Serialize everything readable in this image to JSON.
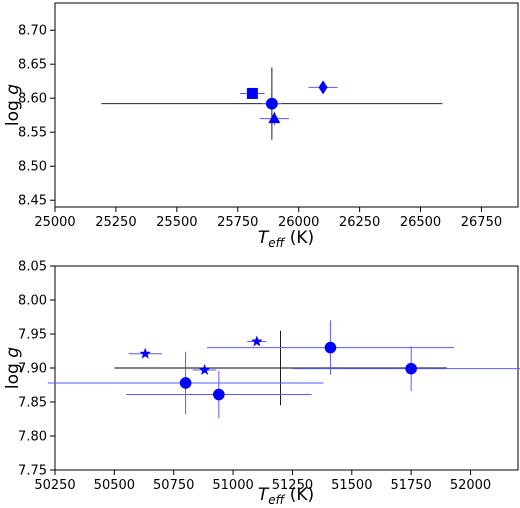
{
  "chart_data": [
    {
      "type": "scatter",
      "xlabel_main": "T",
      "xlabel_sub": "eff",
      "xlabel_unit": " (K)",
      "ylabel_main": "log ",
      "ylabel_var": "g",
      "xlim": [
        25000,
        26900
      ],
      "ylim": [
        8.44,
        8.74
      ],
      "xticks": [
        25000,
        25250,
        25500,
        25750,
        26000,
        26250,
        26500,
        26750
      ],
      "yticks": [
        8.45,
        8.5,
        8.55,
        8.6,
        8.65,
        8.7
      ],
      "ytick_labels": [
        "8.45",
        "8.50",
        "8.55",
        "8.60",
        "8.65",
        "8.70"
      ],
      "grid": false,
      "points": [
        {
          "marker": "square",
          "color": "#0000ff",
          "x": 25810,
          "y": 8.607,
          "xerr": 50,
          "yerr": 0.008
        },
        {
          "marker": "circle",
          "color": "#0000ff",
          "x": 25890,
          "y": 8.592,
          "xerr": 700,
          "yerr": 0.053,
          "errcolor": "#000000"
        },
        {
          "marker": "circle",
          "color": "#0000ff",
          "x": 25890,
          "y": 8.592,
          "xerr": 40,
          "yerr": 0.005
        },
        {
          "marker": "triangle",
          "color": "#0000ff",
          "x": 25900,
          "y": 8.57,
          "xerr": 60,
          "yerr": 0.01
        },
        {
          "marker": "diamond",
          "color": "#0000ff",
          "x": 26100,
          "y": 8.616,
          "xerr": 60,
          "yerr": 0.006
        }
      ]
    },
    {
      "type": "scatter",
      "xlabel_main": "T",
      "xlabel_sub": "eff",
      "xlabel_unit": " (K)",
      "ylabel_main": "log ",
      "ylabel_var": "g",
      "xlim": [
        50250,
        52200
      ],
      "ylim": [
        7.75,
        8.05
      ],
      "xticks": [
        50250,
        50500,
        50750,
        51000,
        51250,
        51500,
        51750,
        52000
      ],
      "yticks": [
        7.75,
        7.8,
        7.85,
        7.9,
        7.95,
        8.0,
        8.05
      ],
      "ytick_labels": [
        "7.75",
        "7.80",
        "7.85",
        "7.90",
        "7.95",
        "8.00",
        "8.05"
      ],
      "grid": false,
      "points": [
        {
          "marker": "circle",
          "color": "#0000ff",
          "x": 51200,
          "y": 7.9,
          "xerr": 700,
          "yerr": 0.055,
          "errcolor": "#000000",
          "hidden": true
        },
        {
          "marker": "star",
          "color": "#0000ff",
          "x": 50630,
          "y": 7.921,
          "xerr": 70,
          "yerr": 0.004
        },
        {
          "marker": "star",
          "color": "#0000ff",
          "x": 50880,
          "y": 7.897,
          "xerr": 50,
          "yerr": 0.004
        },
        {
          "marker": "star",
          "color": "#0000ff",
          "x": 51100,
          "y": 7.939,
          "xerr": 40,
          "yerr": 0.004
        },
        {
          "marker": "circle",
          "color": "#0000ff",
          "x": 50800,
          "y": 7.878,
          "xerr": 580,
          "yerr": 0.046
        },
        {
          "marker": "circle",
          "color": "#0000ff",
          "x": 50940,
          "y": 7.861,
          "xerr": 390,
          "yerr": 0.035
        },
        {
          "marker": "circle",
          "color": "#0000ff",
          "x": 51410,
          "y": 7.93,
          "xerr": 520,
          "yerr": 0.04
        },
        {
          "marker": "circle",
          "color": "#0000ff",
          "x": 51750,
          "y": 7.899,
          "xerr": 500,
          "yerr": 0.033
        }
      ]
    }
  ]
}
